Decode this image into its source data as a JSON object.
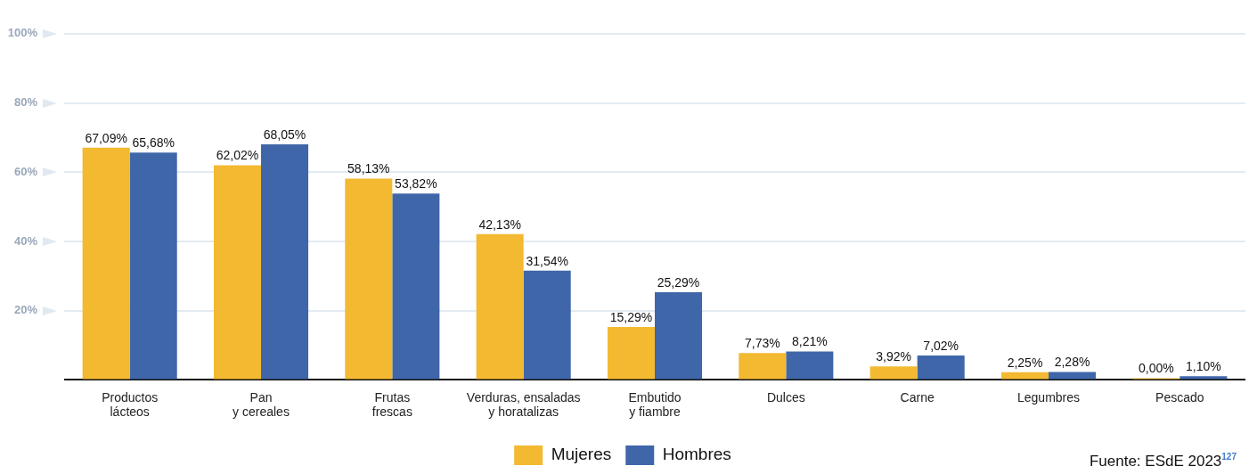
{
  "chart_data": {
    "type": "bar",
    "categories": [
      "Productos\nlácteos",
      "Pan\ny cereales",
      "Frutas\nfrescas",
      "Verduras, ensaladas\ny horatalizas",
      "Embutido\ny fiambre",
      "Dulces",
      "Carne",
      "Legumbres",
      "Pescado"
    ],
    "series": [
      {
        "name": "Mujeres",
        "color": "#f2b931",
        "values": [
          67.09,
          62.02,
          58.13,
          42.13,
          15.29,
          7.73,
          3.92,
          2.25,
          0.0
        ],
        "value_labels": [
          "67,09%",
          "62,02%",
          "58,13%",
          "42,13%",
          "15,29%",
          "7,73%",
          "3,92%",
          "2,25%",
          "0,00%"
        ]
      },
      {
        "name": "Hombres",
        "color": "#3f66a8",
        "values": [
          65.68,
          68.05,
          53.82,
          31.54,
          25.29,
          8.21,
          7.02,
          2.28,
          1.1
        ],
        "value_labels": [
          "65,68%",
          "68,05%",
          "53,82%",
          "31,54%",
          "25,29%",
          "8,21%",
          "7,02%",
          "2,28%",
          "1,10%"
        ]
      }
    ],
    "ylim": [
      0,
      100
    ],
    "yticks": [
      {
        "value": 0,
        "label": null
      },
      {
        "value": 20,
        "label": "20%"
      },
      {
        "value": 40,
        "label": "40%"
      },
      {
        "value": 60,
        "label": "60%"
      },
      {
        "value": 80,
        "label": "80%"
      },
      {
        "value": 100,
        "label": "100%"
      }
    ],
    "grid": "y",
    "legend": "bottom",
    "annotations": [
      "Fuente: ESdE 2023$^{127}$"
    ]
  }
}
